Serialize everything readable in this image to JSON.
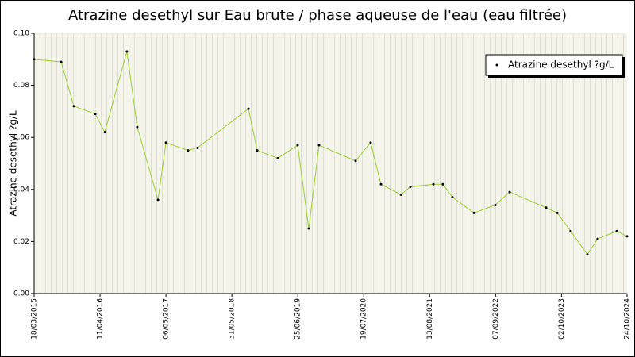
{
  "chart_data": {
    "type": "line",
    "title": "Atrazine desethyl sur Eau brute / phase aqueuse de l'eau (eau filtrée)",
    "y_label": "Atrazine desethyl ?g/L",
    "x": [
      "18/03/2015",
      "25/08/2015",
      "08/11/2015",
      "14/03/2016",
      "09/05/2016",
      "17/09/2016",
      "17/11/2016",
      "20/03/2017",
      "06/05/2017",
      "14/09/2017",
      "09/11/2017",
      "06/09/2018",
      "28/10/2018",
      "27/02/2019",
      "24/06/2019",
      "29/08/2019",
      "29/10/2019",
      "01/06/2020",
      "29/08/2020",
      "29/10/2020",
      "24/02/2021",
      "21/04/2021",
      "04/09/2021",
      "30/10/2021",
      "26/12/2021",
      "02/05/2022",
      "05/09/2022",
      "29/11/2022",
      "03/07/2023",
      "07/09/2023",
      "25/11/2023",
      "03/03/2024",
      "03/05/2024",
      "24/08/2024",
      "24/10/2024"
    ],
    "series": [
      {
        "name": "Atrazine desethyl ?g/L",
        "color": "#9acd32",
        "values": [
          0.09,
          0.089,
          0.072,
          0.069,
          0.062,
          0.093,
          0.064,
          0.036,
          0.058,
          0.055,
          0.056,
          0.071,
          0.055,
          0.052,
          0.057,
          0.025,
          0.057,
          0.051,
          0.058,
          0.042,
          0.038,
          0.041,
          0.042,
          0.042,
          0.037,
          0.031,
          0.034,
          0.039,
          0.033,
          0.031,
          0.024,
          0.015,
          0.021,
          0.024,
          0.022
        ]
      }
    ],
    "xlim": [
      "18/03/2015",
      "24/10/2024"
    ],
    "xticks": [
      "18/03/2015",
      "11/04/2016",
      "06/05/2017",
      "31/05/2018",
      "25/06/2019",
      "19/07/2020",
      "13/08/2021",
      "07/09/2022",
      "02/10/2023",
      "24/10/2024"
    ],
    "ylim": [
      0,
      0.1
    ],
    "yticks": [
      {
        "value": 0,
        "label": "0.00"
      },
      {
        "value": 0.02,
        "label": "0.02"
      },
      {
        "value": 0.04,
        "label": "0.04"
      },
      {
        "value": 0.06,
        "label": "0.06"
      },
      {
        "value": 0.08,
        "label": "0.08"
      },
      {
        "value": 0.1,
        "label": "0.10"
      }
    ],
    "legend": "top-right"
  }
}
